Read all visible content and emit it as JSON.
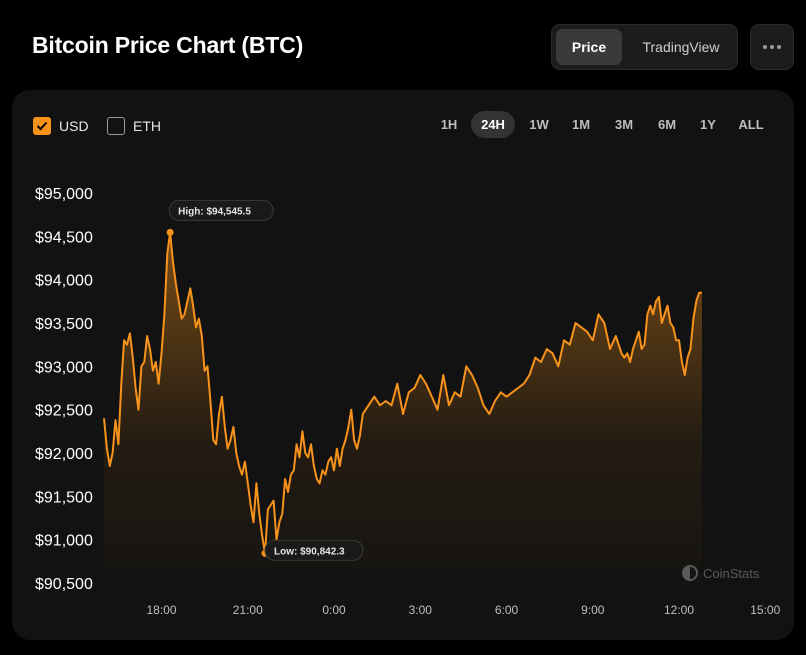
{
  "header": {
    "title": "Bitcoin Price Chart (BTC)",
    "view_options": [
      {
        "label": "Price",
        "active": true
      },
      {
        "label": "TradingView",
        "active": false
      }
    ]
  },
  "currency_toggles": [
    {
      "label": "USD",
      "checked": true
    },
    {
      "label": "ETH",
      "checked": false
    }
  ],
  "time_ranges": [
    {
      "label": "1H",
      "active": false
    },
    {
      "label": "24H",
      "active": true
    },
    {
      "label": "1W",
      "active": false
    },
    {
      "label": "1M",
      "active": false
    },
    {
      "label": "3M",
      "active": false
    },
    {
      "label": "6M",
      "active": false
    },
    {
      "label": "1Y",
      "active": false
    },
    {
      "label": "ALL",
      "active": false
    }
  ],
  "watermark": "CoinStats",
  "colors": {
    "accent": "#f7931a",
    "background": "#000000",
    "card": "#121212"
  },
  "chart_data": {
    "type": "area",
    "title": "",
    "xlabel": "",
    "ylabel": "",
    "currency": "USD",
    "x_ticks": [
      "18:00",
      "21:00",
      "0:00",
      "3:00",
      "6:00",
      "9:00",
      "12:00",
      "15:00"
    ],
    "y_ticks": [
      "$95,000",
      "$94,500",
      "$94,000",
      "$93,500",
      "$93,000",
      "$92,500",
      "$92,000",
      "$91,500",
      "$91,000",
      "$90,500"
    ],
    "ylim": [
      90400,
      95150
    ],
    "x_hours": [
      -2.0,
      -1.9,
      -1.8,
      -1.7,
      -1.6,
      -1.5,
      -1.4,
      -1.3,
      -1.2,
      -1.1,
      -1.0,
      -0.9,
      -0.8,
      -0.7,
      -0.6,
      -0.5,
      -0.4,
      -0.3,
      -0.2,
      -0.1,
      0.0,
      0.1,
      0.2,
      0.3,
      0.4,
      0.5,
      0.6,
      0.7,
      0.8,
      0.9,
      1.0,
      1.1,
      1.2,
      1.3,
      1.4,
      1.5,
      1.6,
      1.7,
      1.8,
      1.9,
      2.0,
      2.1,
      2.2,
      2.3,
      2.4,
      2.5,
      2.6,
      2.7,
      2.8,
      2.9,
      3.0,
      3.1,
      3.2,
      3.3,
      3.4,
      3.5,
      3.6,
      3.7,
      3.8,
      3.9,
      4.0,
      4.1,
      4.2,
      4.3,
      4.4,
      4.5,
      4.6,
      4.7,
      4.8,
      4.9,
      5.0,
      5.1,
      5.2,
      5.3,
      5.4,
      5.5,
      5.6,
      5.7,
      5.8,
      5.9,
      6.0,
      6.1,
      6.2,
      6.3,
      6.4,
      6.5,
      6.6,
      6.7,
      6.8,
      6.9,
      7.0,
      7.2,
      7.4,
      7.6,
      7.8,
      8.0,
      8.2,
      8.4,
      8.6,
      8.8,
      9.0,
      9.2,
      9.4,
      9.6,
      9.8,
      10.0,
      10.2,
      10.4,
      10.6,
      10.8,
      11.0,
      11.2,
      11.4,
      11.6,
      11.8,
      12.0,
      12.2,
      12.4,
      12.6,
      12.8,
      13.0,
      13.2,
      13.4,
      13.6,
      13.8,
      14.0,
      14.2,
      14.4,
      14.6,
      14.8,
      15.0,
      15.2,
      15.4,
      15.6,
      15.8,
      16.0,
      16.1,
      16.2,
      16.3,
      16.4,
      16.5,
      16.6,
      16.7,
      16.8,
      16.9,
      17.0,
      17.1,
      17.2,
      17.3,
      17.4,
      17.5,
      17.6,
      17.7,
      17.8,
      17.9,
      18.0,
      18.1,
      18.2,
      18.3,
      18.4,
      18.5,
      18.6,
      18.7,
      18.8
    ],
    "values": [
      92400,
      92050,
      91850,
      92000,
      92380,
      92100,
      92800,
      93300,
      93250,
      93380,
      93100,
      92750,
      92500,
      93000,
      93050,
      93350,
      93200,
      92950,
      93050,
      92800,
      93150,
      93600,
      94300,
      94545.5,
      94200,
      93950,
      93750,
      93550,
      93600,
      93750,
      93900,
      93700,
      93450,
      93550,
      93350,
      92950,
      93000,
      92600,
      92150,
      92100,
      92450,
      92650,
      92300,
      92050,
      92150,
      92300,
      92000,
      91850,
      91750,
      91900,
      91650,
      91400,
      91200,
      91650,
      91300,
      91050,
      90842.3,
      91350,
      91400,
      91450,
      91000,
      91200,
      91300,
      91700,
      91550,
      91750,
      91800,
      92100,
      91950,
      92250,
      92000,
      91950,
      92100,
      91850,
      91700,
      91650,
      91800,
      91750,
      91900,
      91950,
      91800,
      92050,
      91850,
      92050,
      92150,
      92300,
      92500,
      92150,
      92050,
      92200,
      92450,
      92550,
      92650,
      92550,
      92600,
      92550,
      92800,
      92450,
      92700,
      92750,
      92900,
      92800,
      92650,
      92500,
      92900,
      92550,
      92700,
      92650,
      93000,
      92900,
      92750,
      92550,
      92450,
      92600,
      92700,
      92650,
      92700,
      92750,
      92800,
      92900,
      93100,
      93050,
      93200,
      93150,
      93000,
      93300,
      93250,
      93500,
      93450,
      93400,
      93300,
      93600,
      93500,
      93200,
      93350,
      93150,
      93100,
      93150,
      93050,
      93200,
      93300,
      93400,
      93200,
      93250,
      93600,
      93700,
      93600,
      93750,
      93800,
      93500,
      93600,
      93700,
      93500,
      93450,
      93300,
      93300,
      93050,
      92900,
      93100,
      93200,
      93550,
      93750,
      93850,
      93850
    ],
    "high": {
      "label": "High: $94,545.5",
      "x_hour": 0.3,
      "value": 94545.5
    },
    "low": {
      "label": "Low: $90,842.3",
      "x_hour": 3.6,
      "value": 90842.3
    }
  }
}
